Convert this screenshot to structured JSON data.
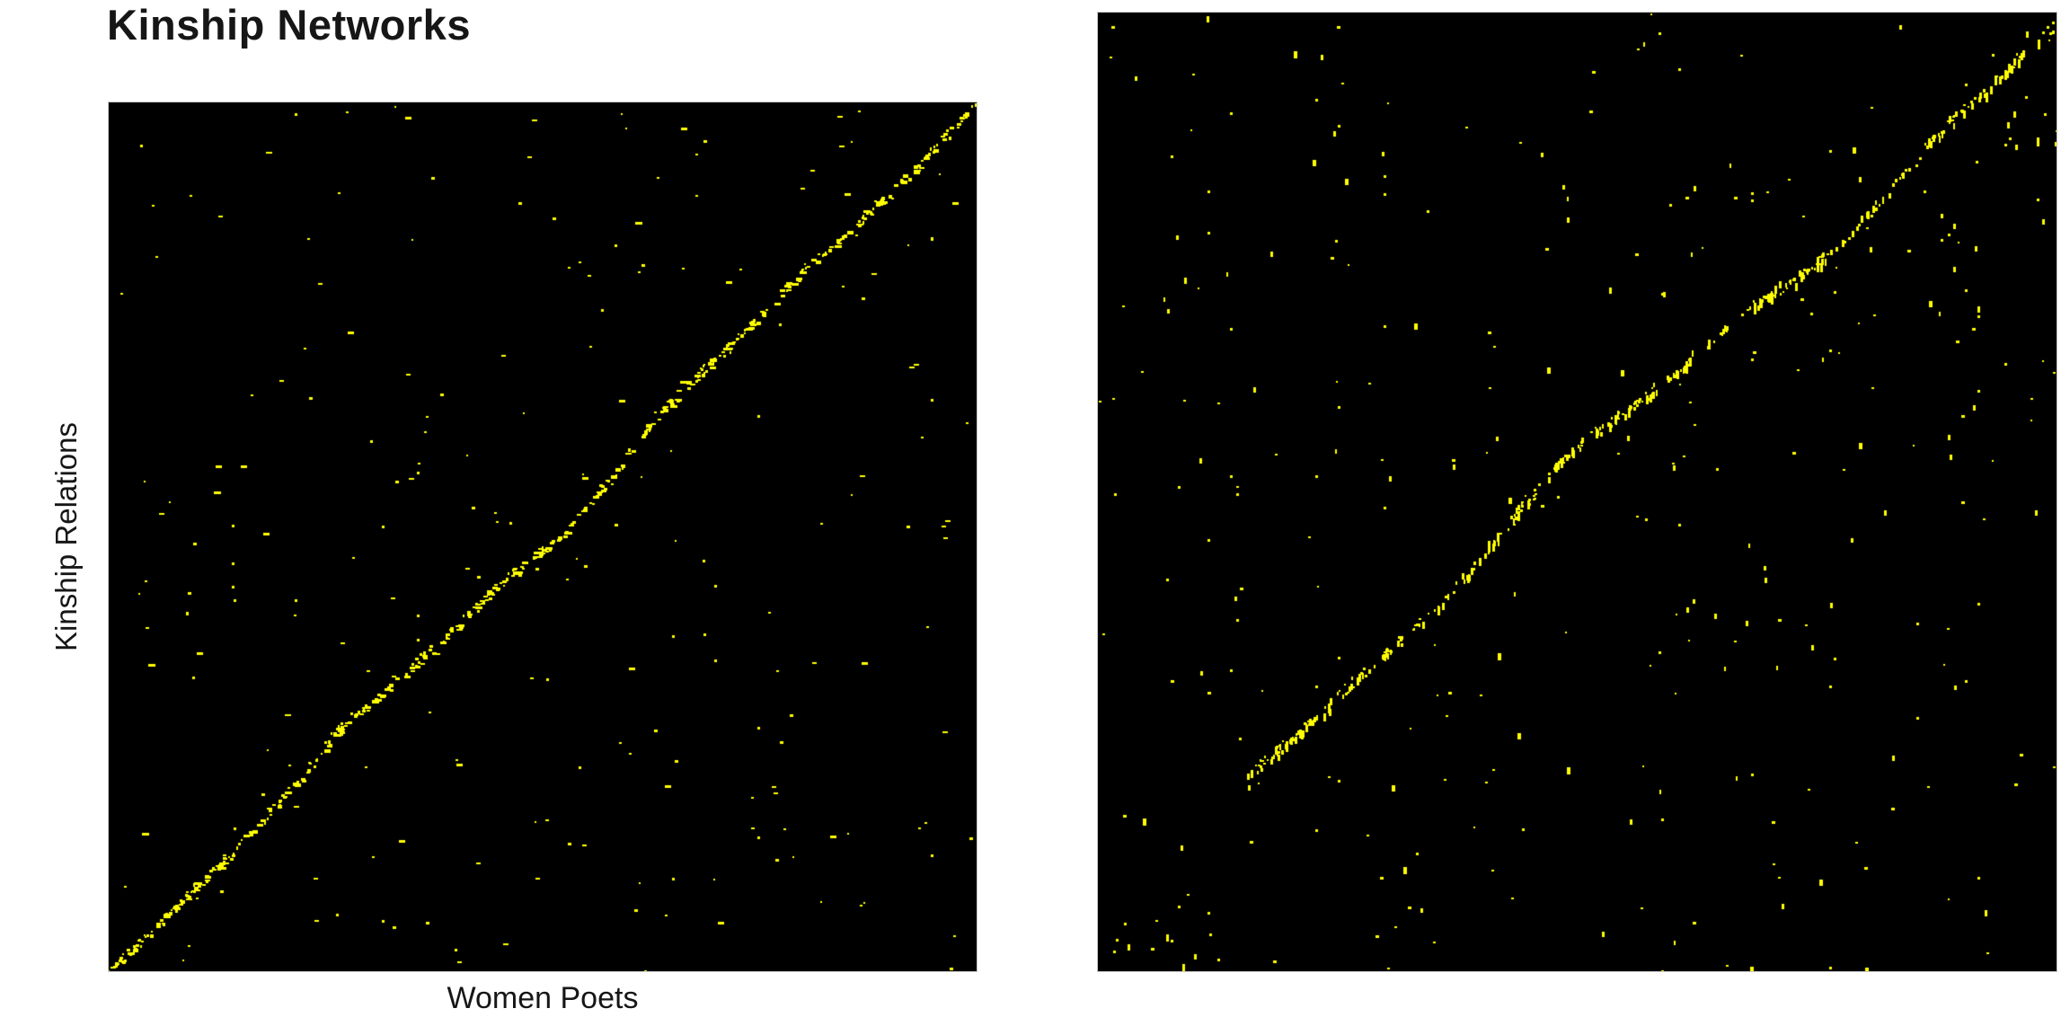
{
  "figure": {
    "title": "Kinship Networks",
    "background": "#ffffff",
    "text_color": "#161616"
  },
  "chart_data": [
    {
      "type": "heatmap",
      "panel": "left",
      "title": "Kinship Networks",
      "xlabel": "Women Poets",
      "ylabel": "Kinship Relations",
      "description": "Sparse binary incidence matrix (women poets x kinship relations): bright yellow cells on a black field, densely chained along a wiggly diagonal running from the bottom-left corner to the top-right corner, with scattered off-diagonal noise points.",
      "bg_color": "#000000",
      "dot_color": "#ffff00",
      "axes": {
        "x_ticks_visible": false,
        "y_ticks_visible": false,
        "grid": false,
        "legend": false
      },
      "seed": 1337,
      "noise": {
        "count": 205,
        "dot_min": 2,
        "dot_max": 4,
        "elongation": "horizontal",
        "elong_prob": 0.3,
        "elong_factor": 2.0
      },
      "columns_echo": {
        "count": 10,
        "dots_min": 2,
        "dots_max": 3
      },
      "diagonal": {
        "count": 400,
        "start": [
          0,
          1
        ],
        "end": [
          1,
          0
        ],
        "amp1": 0.013,
        "freq1": 2.2,
        "phase1": 0.9,
        "amp2": 0.005,
        "freq2": 5.3,
        "phase2": 2.4,
        "jitter": 3.5,
        "dot_min": 2,
        "dot_max": 5,
        "cluster_prob": 0.3
      },
      "extra_clusters": []
    },
    {
      "type": "heatmap",
      "panel": "right",
      "title": "",
      "xlabel": "",
      "ylabel": "",
      "description": "Companion sparse matrix with no axis labels: yellow cells (many short vertical dashes) on black, diagonal chain starting about 15% in from the left at 80% height and rising to the top-right corner, plus scattered noise, faint vertical column repeats, a small cluster at the bottom-left corner and a denser patch near the top-right.",
      "bg_color": "#000000",
      "dot_color": "#ffff00",
      "axes": {
        "x_ticks_visible": false,
        "y_ticks_visible": false,
        "grid": false,
        "legend": false
      },
      "seed": 7071,
      "noise": {
        "count": 250,
        "dot_min": 2,
        "dot_max": 4,
        "elongation": "vertical",
        "elong_prob": 0.35,
        "elong_factor": 2.6
      },
      "columns_echo": {
        "count": 16,
        "dots_min": 2,
        "dots_max": 4
      },
      "diagonal": {
        "count": 290,
        "start": [
          0.15,
          0.8
        ],
        "end": [
          1,
          0.01
        ],
        "amp1": 0.02,
        "freq1": 1.6,
        "phase1": 0.4,
        "amp2": 0.007,
        "freq2": 4.1,
        "phase2": 1.2,
        "jitter": 4,
        "dot_min": 2,
        "dot_max": 4,
        "cluster_prob": 0.38
      },
      "extra_clusters": [
        {
          "count": 10,
          "x": [
            0.0,
            0.13
          ],
          "y": [
            0.93,
            1.0
          ]
        },
        {
          "count": 16,
          "x": [
            0.86,
            0.995
          ],
          "y": [
            0.04,
            0.25
          ]
        }
      ]
    }
  ]
}
